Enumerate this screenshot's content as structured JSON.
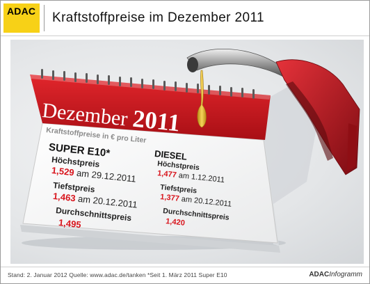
{
  "header": {
    "logo": "ADAC",
    "title": "Kraftstoffpreise im Dezember 2011"
  },
  "calendar": {
    "month": "Dezember",
    "year": "2011",
    "unit_label": "Kraftstoffpreise in € pro Liter"
  },
  "chart_data": {
    "type": "table",
    "unit": "€ pro Liter",
    "columns": [
      "SUPER E10*",
      "DIESEL"
    ],
    "rows": [
      {
        "label": "Höchstpreis",
        "values": [
          "1,529",
          "1,477"
        ],
        "dates": [
          "29.12.2011",
          "1.12.2011"
        ]
      },
      {
        "label": "Tiefstpreis",
        "values": [
          "1,463",
          "1,377"
        ],
        "dates": [
          "20.12.2011",
          "20.12.2011"
        ]
      },
      {
        "label": "Durchschnittspreis",
        "values": [
          "1,495",
          "1,420"
        ],
        "dates": [
          "",
          ""
        ]
      }
    ],
    "text": {
      "date_prefix": "am"
    }
  },
  "footer": {
    "text": "Stand: 2. Januar 2012   Quelle: www.adac.de/tanken   *Seit 1. März 2011 Super E10",
    "brand_bold": "ADAC",
    "brand_italic": "Infogramm"
  },
  "colors": {
    "logo_yellow": "#f7d117",
    "calendar_red": "#c8161d",
    "price_red": "#d8141c",
    "nozzle_red": "#b5121b"
  }
}
